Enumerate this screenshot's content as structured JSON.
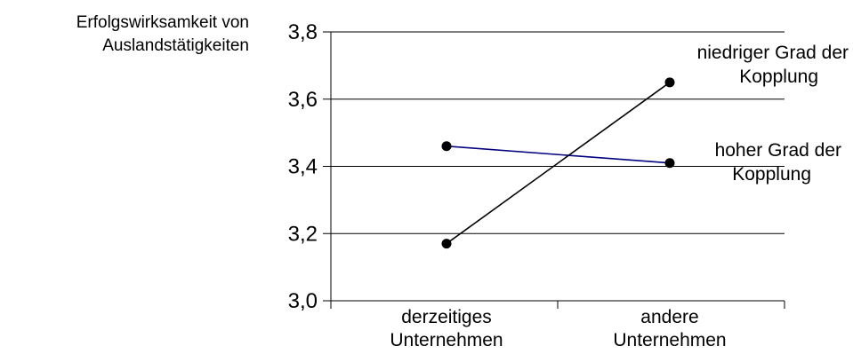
{
  "chart_data": {
    "type": "line",
    "title": "",
    "ylabel": [
      "Erfolgswirksamkeit von",
      "Auslandstätigkeiten"
    ],
    "xlabel": "",
    "categories": [
      [
        "derzeitiges",
        "Unternehmen"
      ],
      [
        "andere",
        "Unternehmen"
      ]
    ],
    "ylim": [
      3.0,
      3.8
    ],
    "yticks": [
      3.0,
      3.2,
      3.4,
      3.6,
      3.8
    ],
    "ytick_labels": [
      "3,0",
      "3,2",
      "3,4",
      "3,6",
      "3,8"
    ],
    "grid": true,
    "legend": "inline-right",
    "series": [
      {
        "name": [
          "hoher Grad der",
          "Kopplung"
        ],
        "values": [
          3.46,
          3.41
        ],
        "color": "#000080"
      },
      {
        "name": [
          "niedriger Grad der",
          "Kopplung"
        ],
        "values": [
          3.17,
          3.65
        ],
        "color": "#000000"
      }
    ]
  }
}
